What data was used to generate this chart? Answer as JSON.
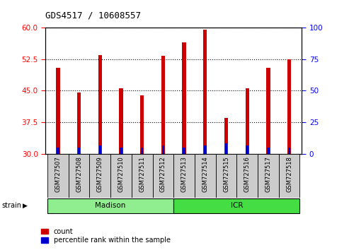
{
  "title": "GDS4517 / 10608557",
  "categories": [
    "GSM727507",
    "GSM727508",
    "GSM727509",
    "GSM727510",
    "GSM727511",
    "GSM727512",
    "GSM727513",
    "GSM727514",
    "GSM727515",
    "GSM727516",
    "GSM727517",
    "GSM727518"
  ],
  "count_values": [
    50.5,
    44.5,
    53.5,
    45.5,
    43.8,
    53.3,
    56.5,
    59.5,
    38.5,
    45.5,
    50.5,
    52.5
  ],
  "percentile_values": [
    1.5,
    1.5,
    2.0,
    1.5,
    1.5,
    2.0,
    1.5,
    2.0,
    2.5,
    2.0,
    1.5,
    1.5
  ],
  "bar_bottom": 30,
  "ylim_left": [
    30,
    60
  ],
  "ylim_right": [
    0,
    100
  ],
  "yticks_left": [
    30,
    37.5,
    45,
    52.5,
    60
  ],
  "yticks_right": [
    0,
    25,
    50,
    75,
    100
  ],
  "count_color": "#cc0000",
  "percentile_color": "#0000cc",
  "madison_color": "#90EE90",
  "icr_color": "#44dd44",
  "madison_n": 6,
  "icr_n": 6,
  "legend_count_label": "count",
  "legend_percentile_label": "percentile rank within the sample",
  "strain_label": "strain",
  "madison_label": "Madison",
  "icr_label": "ICR",
  "background_color": "#ffffff",
  "tick_box_color": "#cccccc",
  "bar_width": 0.18,
  "blue_bar_width": 0.12
}
